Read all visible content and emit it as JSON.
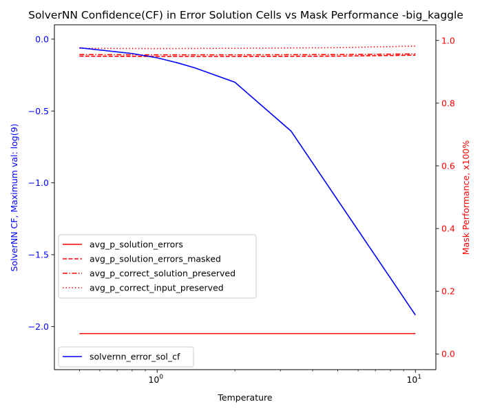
{
  "chart_data": {
    "type": "line",
    "title": "SolverNN Confidence(CF) in Error Solution Cells vs Mask Performance -big_kaggle",
    "xlabel": "Temperature",
    "ylabel_left": "SolverNN CF, Maximum val: log(9)",
    "ylabel_right": "Mask Performance, x100%",
    "xscale": "log",
    "xlim": [
      0.4,
      12
    ],
    "ylim_left": [
      -2.3,
      0.1
    ],
    "ylim_right": [
      -0.05,
      1.05
    ],
    "x_ticks": [
      {
        "value": 1,
        "label": "10",
        "exp": "0"
      },
      {
        "value": 10,
        "label": "10",
        "exp": "1"
      }
    ],
    "y_ticks_left": [
      "0.0",
      "−0.5",
      "−1.0",
      "−1.5",
      "−2.0"
    ],
    "y_ticks_right": [
      "0.0",
      "0.2",
      "0.4",
      "0.6",
      "0.8",
      "1.0"
    ],
    "left_color": "#0000ff",
    "right_color": "#ff0000",
    "series_left": [
      {
        "name": "solvernn_error_sol_cf",
        "color": "#0000ff",
        "x": [
          0.5,
          0.8,
          1.0,
          1.2,
          1.4,
          2.0,
          3.3,
          10.0
        ],
        "y": [
          -0.06,
          -0.1,
          -0.13,
          -0.165,
          -0.2,
          -0.3,
          -0.64,
          -1.92
        ]
      }
    ],
    "series_right": [
      {
        "name": "avg_p_solution_errors",
        "color": "#ff0000",
        "style": "solid",
        "x": [
          0.5,
          10.0
        ],
        "y": [
          0.065,
          0.065
        ]
      },
      {
        "name": "avg_p_solution_errors_masked",
        "color": "#ff0000",
        "style": "dashed",
        "x": [
          0.5,
          1.0,
          2.0,
          5.0,
          10.0
        ],
        "y": [
          0.95,
          0.949,
          0.949,
          0.95,
          0.953
        ]
      },
      {
        "name": "avg_p_correct_solution_preserved",
        "color": "#ff0000",
        "style": "dashdot",
        "x": [
          0.5,
          1.0,
          2.0,
          5.0,
          10.0
        ],
        "y": [
          0.955,
          0.954,
          0.954,
          0.955,
          0.957
        ]
      },
      {
        "name": "avg_p_correct_input_preserved",
        "color": "#ff0000",
        "style": "dotted",
        "x": [
          0.5,
          1.0,
          2.0,
          5.0,
          10.0
        ],
        "y": [
          0.975,
          0.974,
          0.975,
          0.977,
          0.982
        ]
      }
    ],
    "legend_left_placement": "lower-left",
    "legend_right_placement": "center-left",
    "grid": false
  }
}
